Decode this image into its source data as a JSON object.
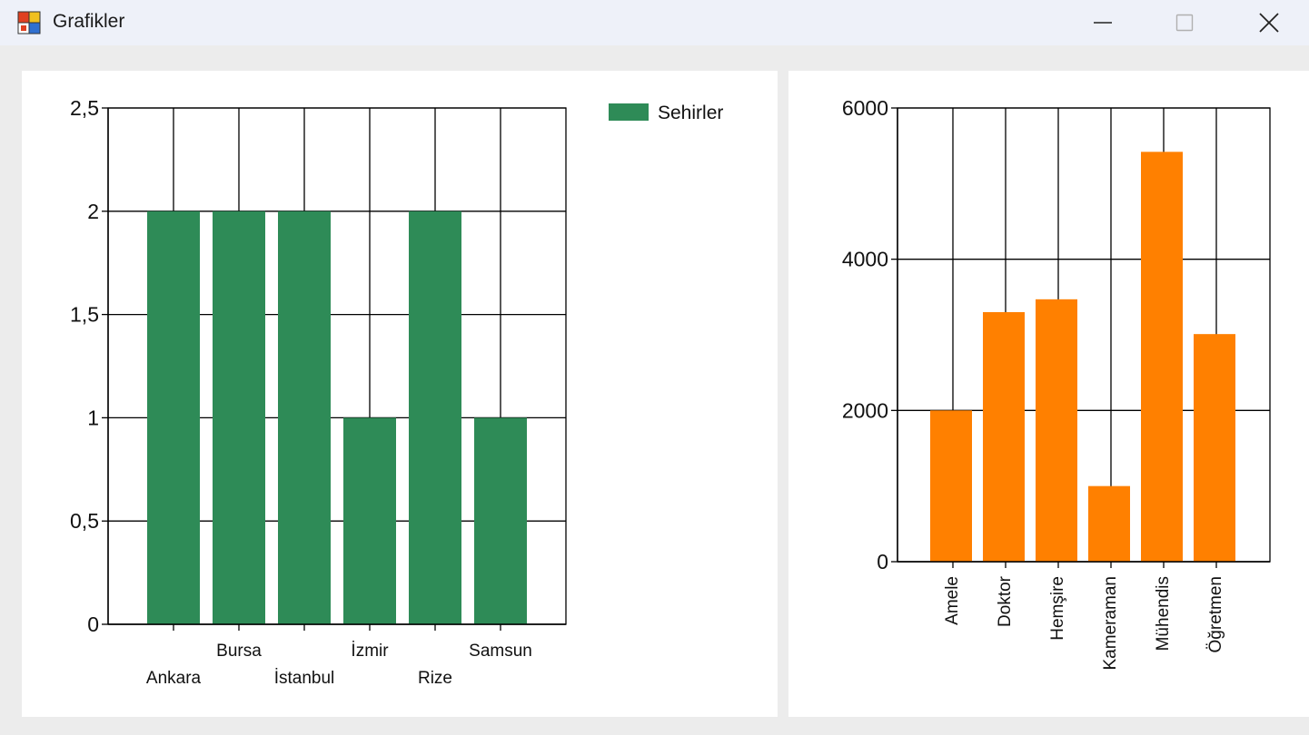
{
  "window": {
    "title": "Grafikler",
    "controls": [
      "minimize-icon",
      "maximize-icon",
      "close-icon"
    ]
  },
  "chart_data": [
    {
      "type": "bar",
      "categories": [
        "Ankara",
        "Bursa",
        "İstanbul",
        "İzmir",
        "Rize",
        "Samsun"
      ],
      "series": [
        {
          "name": "Sehirler",
          "values": [
            2,
            2,
            2,
            1,
            2,
            1
          ],
          "color": "#2e8b57"
        }
      ],
      "ylim": [
        0,
        2.5
      ],
      "yticks": [
        "0",
        "0,5",
        "1",
        "1,5",
        "2",
        "2,5"
      ],
      "grid": true,
      "legend": "top-right",
      "title": "",
      "xlabel": "",
      "ylabel": ""
    },
    {
      "type": "bar",
      "categories": [
        "Amele",
        "Doktor",
        "Hemşire",
        "Kameraman",
        "Mühendis",
        "Öğretmen"
      ],
      "series": [
        {
          "values": [
            2000,
            3300,
            3470,
            1000,
            5420,
            3010
          ],
          "color": "#ff8000"
        }
      ],
      "ylim": [
        0,
        6000
      ],
      "yticks": [
        "0",
        "2000",
        "4000",
        "6000"
      ],
      "grid": true,
      "legend": "none",
      "title": "",
      "xlabel": "",
      "ylabel": ""
    }
  ]
}
